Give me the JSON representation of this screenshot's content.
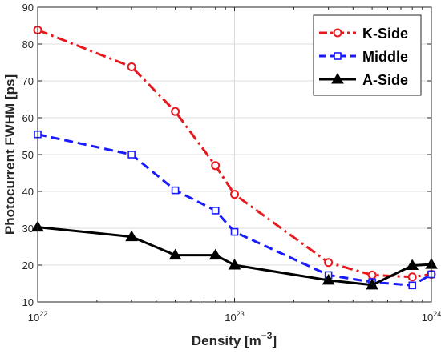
{
  "chart_data": {
    "type": "line",
    "xscale": "log",
    "xlim": [
      1e+22,
      1e+24
    ],
    "ylim": [
      10,
      90
    ],
    "xlabel": "Density [m",
    "xlabel_exp": "−3",
    "xlabel_close": "]",
    "ylabel": "Photocurrent FWHM [ps]",
    "grid": true,
    "legend_position": "top-right",
    "x_ticks": [
      {
        "value": 1e+22,
        "base": "10",
        "exp": "22"
      },
      {
        "value": 1e+23,
        "base": "10",
        "exp": "23"
      },
      {
        "value": 1e+24,
        "base": "10",
        "exp": "24"
      }
    ],
    "y_ticks": [
      "10",
      "20",
      "30",
      "40",
      "50",
      "60",
      "70",
      "80",
      "90"
    ],
    "series": [
      {
        "name": "K-Side",
        "color": "#e8191e",
        "marker": "circle",
        "line": "dashdot",
        "x": [
          1e+22,
          3e+22,
          5e+22,
          8e+22,
          1e+23,
          3e+23,
          5e+23,
          8e+23,
          1e+24
        ],
        "y": [
          83.8,
          73.8,
          61.7,
          47.0,
          39.2,
          20.7,
          17.3,
          16.8,
          17.5
        ]
      },
      {
        "name": "Middle",
        "color": "#1a1aff",
        "marker": "square",
        "line": "dashed",
        "x": [
          1e+22,
          3e+22,
          5e+22,
          8e+22,
          1e+23,
          3e+23,
          5e+23,
          8e+23,
          1e+24
        ],
        "y": [
          55.5,
          50.0,
          40.3,
          34.8,
          29.0,
          17.3,
          15.4,
          14.5,
          17.5
        ]
      },
      {
        "name": "A-Side",
        "color": "#000000",
        "marker": "triangle",
        "line": "solid",
        "x": [
          1e+22,
          3e+22,
          5e+22,
          8e+22,
          1e+23,
          3e+23,
          5e+23,
          8e+23,
          1e+24
        ],
        "y": [
          30.3,
          27.7,
          22.7,
          22.7,
          20.0,
          15.9,
          14.6,
          19.9,
          20.2
        ]
      }
    ]
  }
}
